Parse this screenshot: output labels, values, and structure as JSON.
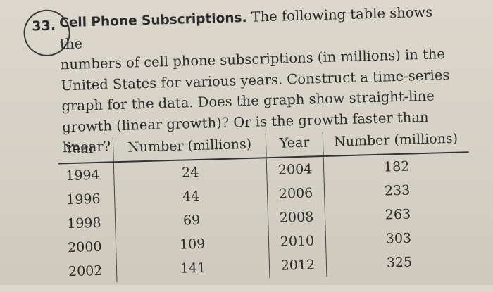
{
  "problem": {
    "number": "33.",
    "title": "Cell Phone Subscriptions.",
    "lines": [
      "The following table shows the",
      "numbers of cell phone subscriptions (in millions) in the",
      "United States for various years. Construct a time-series",
      "graph for the data. Does the graph show straight-line",
      "growth (linear growth)? Or is the growth faster than",
      "linear?"
    ]
  },
  "table": {
    "headers": [
      "Year",
      "Number (millions)",
      "Year",
      "Number (millions)"
    ],
    "rows": [
      [
        "1994",
        "24",
        "2004",
        "182"
      ],
      [
        "1996",
        "44",
        "2006",
        "233"
      ],
      [
        "1998",
        "69",
        "2008",
        "263"
      ],
      [
        "2000",
        "109",
        "2010",
        "303"
      ],
      [
        "2002",
        "141",
        "2012",
        "325"
      ]
    ]
  }
}
